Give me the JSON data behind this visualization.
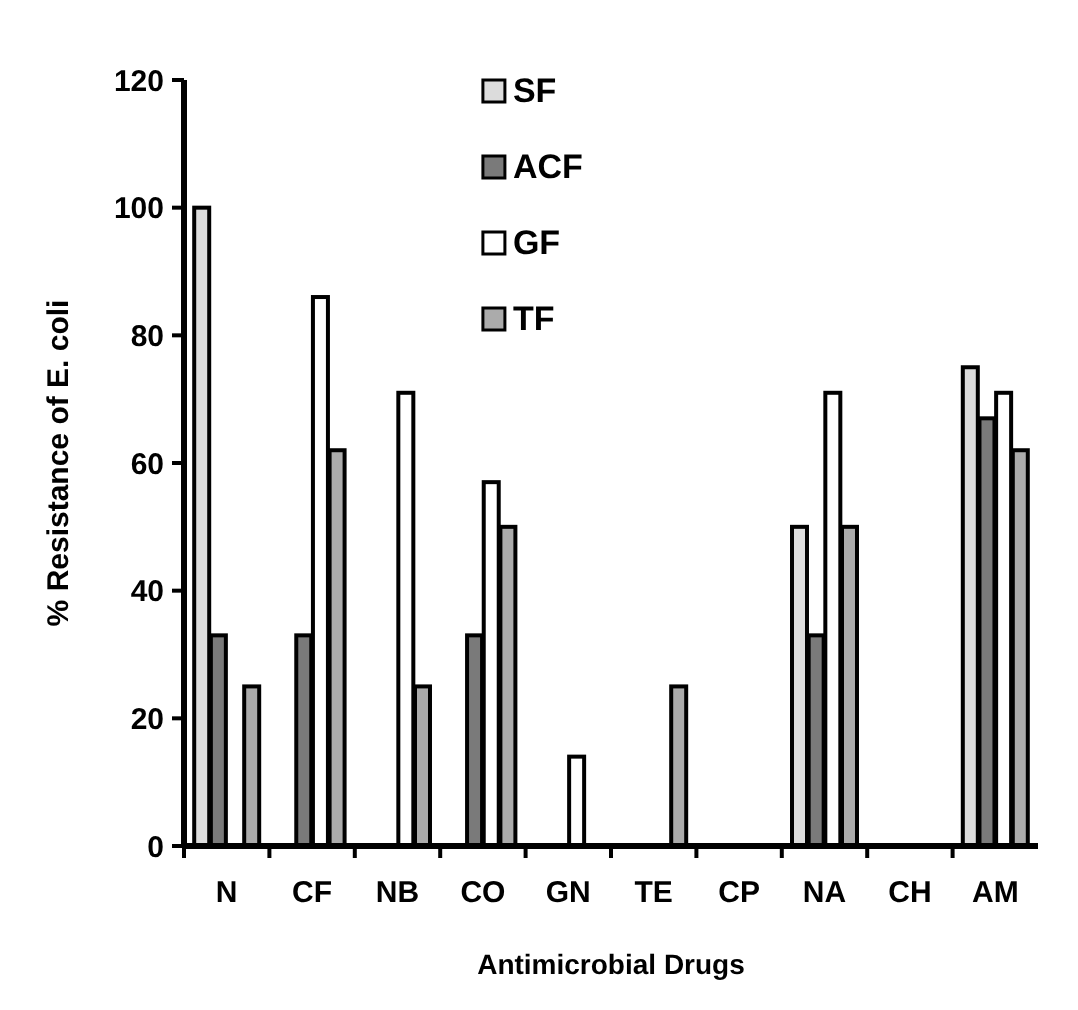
{
  "chart_data": {
    "type": "bar",
    "xlabel": "Antimicrobial Drugs",
    "ylabel": "% Resistance of E. coli",
    "categories": [
      "N",
      "CF",
      "NB",
      "CO",
      "GN",
      "TE",
      "CP",
      "NA",
      "CH",
      "AM"
    ],
    "series": [
      {
        "name": "SF",
        "color": "#dcdcdc",
        "values": [
          100,
          0,
          0,
          0,
          0,
          0,
          0,
          50,
          0,
          75
        ]
      },
      {
        "name": "ACF",
        "color": "#7a7a7a",
        "values": [
          33,
          33,
          0,
          33,
          0,
          0,
          0,
          33,
          0,
          67
        ]
      },
      {
        "name": "GF",
        "color": "#ffffff",
        "values": [
          0,
          86,
          71,
          57,
          14,
          0,
          0,
          71,
          0,
          71
        ]
      },
      {
        "name": "TF",
        "color": "#ababab",
        "values": [
          25,
          62,
          25,
          50,
          0,
          25,
          0,
          50,
          0,
          62
        ]
      }
    ],
    "ylim": [
      0,
      120
    ],
    "yticks": [
      0,
      20,
      40,
      60,
      80,
      100,
      120
    ],
    "grid": false,
    "legend": "top"
  }
}
